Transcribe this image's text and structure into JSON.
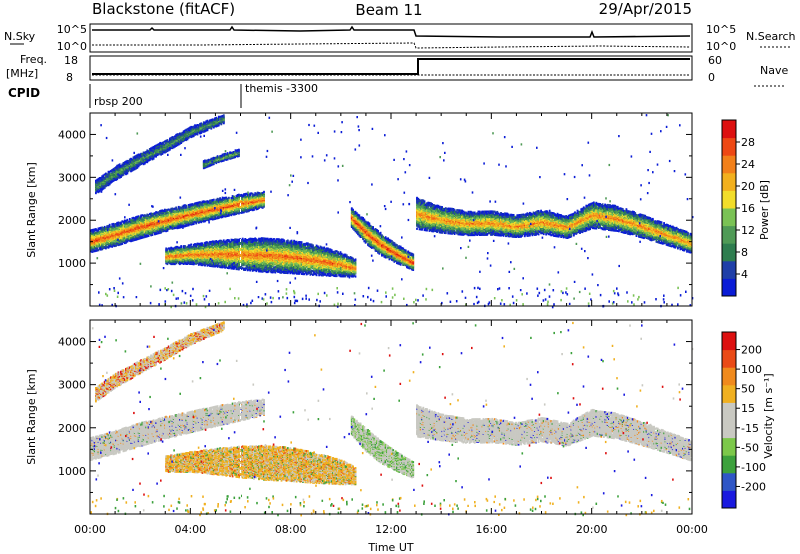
{
  "header": {
    "station": "Blackstone (fitACF)",
    "beam": "Beam 11",
    "date": "29/Apr/2015"
  },
  "noise_panel": {
    "left_label": "N.Sky",
    "right_label": "N.Search",
    "left_ticks": [
      "10^5",
      "10^0"
    ],
    "right_ticks": [
      "10^5",
      "10^0"
    ]
  },
  "freq_panel": {
    "left_label_line1": "Freq.",
    "left_label_line2": "[MHz]",
    "right_label": "Nave",
    "left_ticks": [
      "18",
      "8"
    ],
    "right_ticks": [
      "60",
      "0"
    ]
  },
  "cpid_panel": {
    "label": "CPID",
    "segments": [
      {
        "name": "rbsp 200",
        "start_hour": 0
      },
      {
        "name": "themis -3300",
        "start_hour": 6
      }
    ]
  },
  "chart_data": [
    {
      "type": "heatmap",
      "name": "power",
      "x_range_hours": [
        0,
        24
      ],
      "ylim": [
        0,
        4500
      ],
      "ylabel": "Slant Range [km]",
      "yticks": [
        "1000",
        "2000",
        "3000",
        "4000"
      ],
      "colorbar": {
        "label": "Power [dB]",
        "ticks": [
          "4",
          "8",
          "12",
          "16",
          "20",
          "24",
          "28"
        ],
        "colors": [
          "#0a1cd6",
          "#1f3fa8",
          "#2e7d4f",
          "#4f9a56",
          "#7ac255",
          "#f2dd2a",
          "#f2b01e",
          "#f2801a",
          "#ee4814",
          "#dd1010"
        ]
      },
      "structures": [
        {
          "t": [
            0,
            1,
            2,
            3,
            4,
            5,
            6,
            6.9
          ],
          "r": [
            1500,
            1660,
            1840,
            1990,
            2130,
            2260,
            2380,
            2470
          ],
          "w": [
            210,
            220,
            220,
            210,
            200,
            190,
            180,
            150
          ],
          "level": 0.85
        },
        {
          "t": [
            0.2,
            1,
            2,
            3,
            4,
            5.3
          ],
          "r": [
            2760,
            3090,
            3410,
            3720,
            4050,
            4350
          ],
          "w": [
            130,
            130,
            120,
            110,
            100,
            80
          ],
          "level": 0.35
        },
        {
          "t": [
            4.5,
            5.1,
            5.9
          ],
          "r": [
            3290,
            3420,
            3560
          ],
          "w": [
            70,
            60,
            60
          ],
          "level": 0.4
        },
        {
          "t": [
            3,
            4,
            5,
            6,
            7,
            8,
            9,
            10,
            10.6
          ],
          "r": [
            1150,
            1200,
            1210,
            1200,
            1180,
            1140,
            1060,
            960,
            870
          ],
          "w": [
            150,
            190,
            250,
            300,
            330,
            320,
            290,
            230,
            160
          ],
          "level": 0.8
        },
        {
          "t": [
            10.4,
            11,
            11.6,
            12.2,
            12.9
          ],
          "r": [
            2050,
            1700,
            1420,
            1210,
            1000
          ],
          "w": [
            180,
            220,
            210,
            180,
            150
          ],
          "level": 0.9
        },
        {
          "t": [
            13,
            14,
            15,
            16,
            17,
            18,
            19,
            20,
            21,
            22,
            23,
            24
          ],
          "r": [
            2150,
            2000,
            1920,
            1930,
            1850,
            1950,
            1830,
            2110,
            2030,
            1850,
            1650,
            1450
          ],
          "w": [
            300,
            250,
            230,
            230,
            210,
            230,
            210,
            250,
            240,
            220,
            200,
            190
          ],
          "level": 0.75
        }
      ]
    },
    {
      "type": "heatmap",
      "name": "velocity",
      "x_range_hours": [
        0,
        24
      ],
      "ylim": [
        0,
        4500
      ],
      "ylabel": "Slant Range [km]",
      "xlabel": "Time UT",
      "xticks": [
        "00:00",
        "04:00",
        "08:00",
        "12:00",
        "16:00",
        "20:00",
        "00:00"
      ],
      "yticks": [
        "1000",
        "2000",
        "3000",
        "4000"
      ],
      "colorbar": {
        "label": "Velocity [m s⁻¹]",
        "ticks": [
          "200",
          "100",
          "50",
          "15",
          "-15",
          "-50",
          "-100",
          "-200"
        ],
        "colors": [
          "#1a1adf",
          "#2f56c6",
          "#3ca13c",
          "#7cc84a",
          "#c9c9c2",
          "#c9c9c2",
          "#f0b020",
          "#f08a1c",
          "#ea4a16",
          "#dd1010"
        ]
      },
      "structures": [
        {
          "t": [
            0,
            1,
            2,
            3,
            4,
            5,
            6,
            6.9
          ],
          "r": [
            1500,
            1660,
            1840,
            1990,
            2130,
            2260,
            2380,
            2470
          ],
          "w": [
            210,
            220,
            220,
            210,
            200,
            190,
            180,
            150
          ],
          "v": "gray"
        },
        {
          "t": [
            0.2,
            1,
            2,
            3,
            4,
            5.3
          ],
          "r": [
            2760,
            3090,
            3410,
            3720,
            4050,
            4350
          ],
          "w": [
            130,
            130,
            120,
            110,
            100,
            80
          ],
          "v": "orange-gray"
        },
        {
          "t": [
            3,
            4,
            5,
            6,
            7,
            8,
            9,
            10,
            10.6
          ],
          "r": [
            1150,
            1200,
            1210,
            1200,
            1180,
            1140,
            1060,
            960,
            870
          ],
          "w": [
            150,
            190,
            250,
            300,
            330,
            320,
            290,
            230,
            160
          ],
          "v": "orange"
        },
        {
          "t": [
            10.4,
            11,
            11.6,
            12.2,
            12.9
          ],
          "r": [
            2050,
            1700,
            1420,
            1210,
            1000
          ],
          "w": [
            180,
            220,
            210,
            180,
            150
          ],
          "v": "gray-green"
        },
        {
          "t": [
            13,
            14,
            15,
            16,
            17,
            18,
            19,
            20,
            21,
            22,
            23,
            24
          ],
          "r": [
            2150,
            2000,
            1920,
            1930,
            1850,
            1950,
            1830,
            2110,
            2030,
            1850,
            1650,
            1450
          ],
          "w": [
            300,
            250,
            230,
            230,
            210,
            230,
            210,
            250,
            240,
            220,
            200,
            190
          ],
          "v": "gray"
        }
      ]
    }
  ]
}
